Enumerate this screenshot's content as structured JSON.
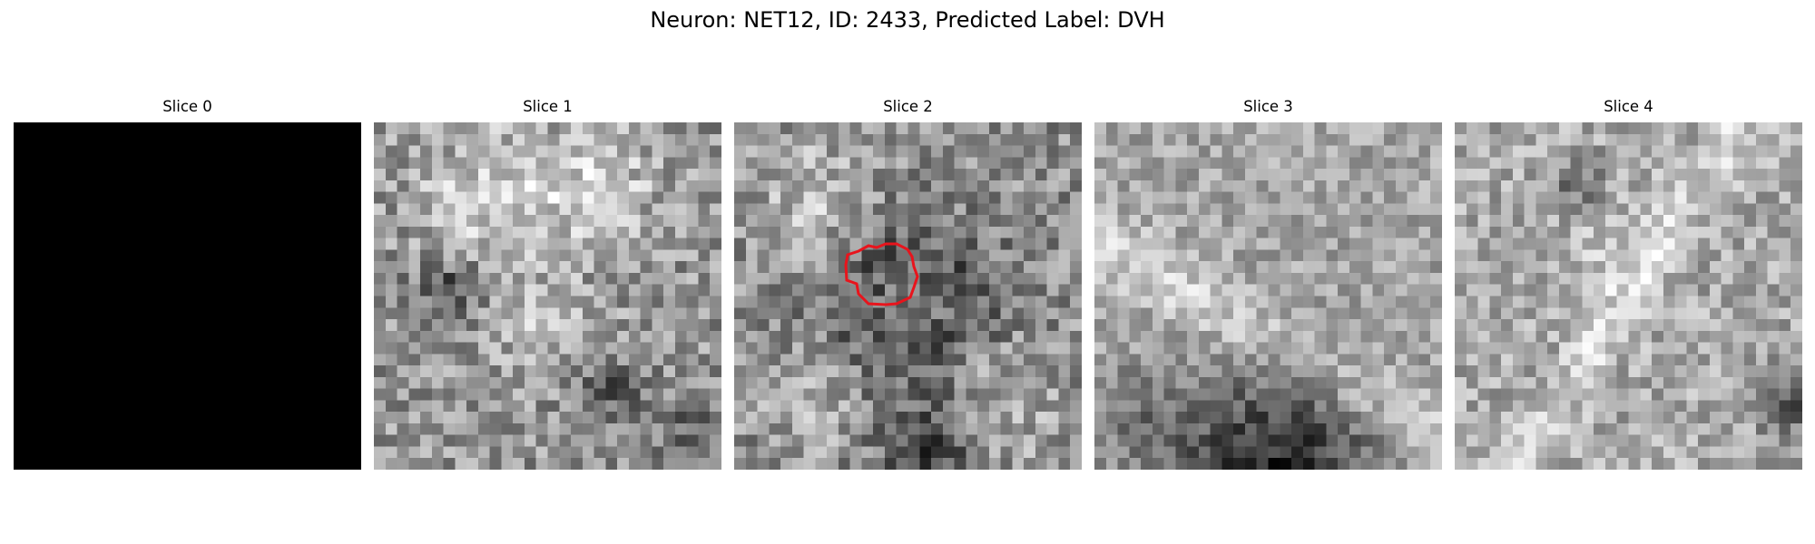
{
  "figure": {
    "title": "Neuron: NET12, ID: 2433, Predicted Label: DVH"
  },
  "colormap": "gray",
  "contour_color": "#e8141c",
  "panels": [
    {
      "title": "Slice 0",
      "style": "black",
      "contour": false
    },
    {
      "title": "Slice 1",
      "style": "blobs",
      "contour": false
    },
    {
      "title": "Slice 2",
      "style": "ring",
      "contour": true
    },
    {
      "title": "Slice 3",
      "style": "dark-bottom",
      "contour": false
    },
    {
      "title": "Slice 4",
      "style": "streaks",
      "contour": false
    }
  ]
}
